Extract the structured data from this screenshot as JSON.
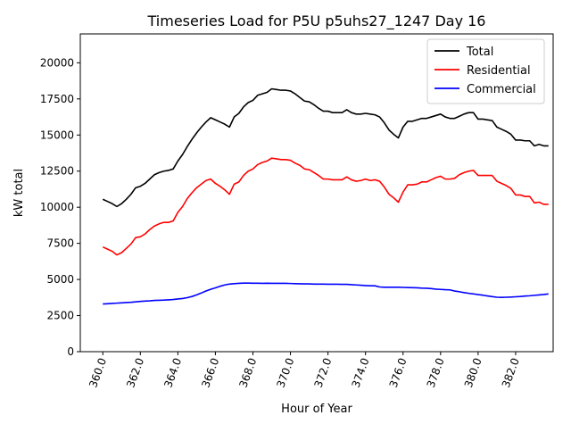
{
  "chart_data": {
    "type": "line",
    "title": "Timeseries Load for P5U p5uhs27_1247  Day 16",
    "xlabel": "Hour of Year",
    "ylabel": "kW total",
    "xlim": [
      358.8,
      384.0
    ],
    "ylim": [
      0,
      22000
    ],
    "xticks": [
      360,
      362,
      364,
      366,
      368,
      370,
      372,
      374,
      376,
      378,
      380,
      382
    ],
    "xtick_labels": [
      "360.0",
      "362.0",
      "364.0",
      "366.0",
      "368.0",
      "370.0",
      "372.0",
      "374.0",
      "376.0",
      "378.0",
      "380.0",
      "382.0"
    ],
    "yticks": [
      0,
      2500,
      5000,
      7500,
      10000,
      12500,
      15000,
      17500,
      20000
    ],
    "ytick_labels": [
      "0",
      "2500",
      "5000",
      "7500",
      "10000",
      "12500",
      "15000",
      "17500",
      "20000"
    ],
    "legend_position": "upper right",
    "x": [
      360.0,
      360.25,
      360.5,
      360.75,
      361.0,
      361.25,
      361.5,
      361.75,
      362.0,
      362.25,
      362.5,
      362.75,
      363.0,
      363.25,
      363.5,
      363.75,
      364.0,
      364.25,
      364.5,
      364.75,
      365.0,
      365.25,
      365.5,
      365.75,
      366.0,
      366.25,
      366.5,
      366.75,
      367.0,
      367.25,
      367.5,
      367.75,
      368.0,
      368.25,
      368.5,
      368.75,
      369.0,
      369.25,
      369.5,
      369.75,
      370.0,
      370.25,
      370.5,
      370.75,
      371.0,
      371.25,
      371.5,
      371.75,
      372.0,
      372.25,
      372.5,
      372.75,
      373.0,
      373.25,
      373.5,
      373.75,
      374.0,
      374.25,
      374.5,
      374.75,
      375.0,
      375.25,
      375.5,
      375.75,
      376.0,
      376.25,
      376.5,
      376.75,
      377.0,
      377.25,
      377.5,
      377.75,
      378.0,
      378.25,
      378.5,
      378.75,
      379.0,
      379.25,
      379.5,
      379.75,
      380.0,
      380.25,
      380.5,
      380.75,
      381.0,
      381.25,
      381.5,
      381.75,
      382.0,
      382.25,
      382.5,
      382.75,
      383.0,
      383.25,
      383.5,
      383.75
    ],
    "series": [
      {
        "name": "Total",
        "color": "#000000",
        "values": [
          10550,
          10400,
          10250,
          10050,
          10250,
          10550,
          10900,
          11350,
          11450,
          11650,
          11950,
          12250,
          12400,
          12500,
          12550,
          12650,
          13200,
          13650,
          14200,
          14700,
          15150,
          15550,
          15900,
          16200,
          16050,
          15900,
          15750,
          15550,
          16250,
          16500,
          16950,
          17250,
          17400,
          17750,
          17850,
          17950,
          18200,
          18150,
          18100,
          18100,
          18050,
          17850,
          17600,
          17350,
          17300,
          17100,
          16850,
          16650,
          16650,
          16550,
          16550,
          16550,
          16750,
          16550,
          16450,
          16450,
          16500,
          16450,
          16400,
          16250,
          15850,
          15350,
          15050,
          14800,
          15550,
          15950,
          15950,
          16050,
          16150,
          16150,
          16250,
          16350,
          16450,
          16250,
          16150,
          16150,
          16300,
          16450,
          16550,
          16550,
          16100,
          16100,
          16050,
          16000,
          15550,
          15400,
          15250,
          15050,
          14650,
          14650,
          14600,
          14600,
          14250,
          14350,
          14250,
          14250
        ]
      },
      {
        "name": "Residential",
        "color": "#ff0000",
        "values": [
          7250,
          7100,
          6950,
          6700,
          6850,
          7150,
          7450,
          7900,
          7950,
          8150,
          8450,
          8700,
          8850,
          8950,
          8950,
          9050,
          9650,
          10050,
          10600,
          11000,
          11350,
          11600,
          11850,
          11950,
          11650,
          11450,
          11200,
          10900,
          11600,
          11750,
          12200,
          12500,
          12650,
          12950,
          13100,
          13200,
          13400,
          13350,
          13300,
          13300,
          13250,
          13050,
          12900,
          12650,
          12600,
          12400,
          12200,
          11950,
          11950,
          11900,
          11900,
          11900,
          12100,
          11900,
          11800,
          11850,
          11950,
          11850,
          11900,
          11800,
          11400,
          10900,
          10650,
          10350,
          11050,
          11550,
          11550,
          11600,
          11750,
          11750,
          11900,
          12050,
          12150,
          11950,
          11950,
          12000,
          12250,
          12400,
          12500,
          12550,
          12200,
          12200,
          12200,
          12200,
          11800,
          11650,
          11500,
          11300,
          10850,
          10850,
          10750,
          10750,
          10300,
          10350,
          10200,
          10200
        ]
      },
      {
        "name": "Commercial",
        "color": "#0000ff",
        "values": [
          3300,
          3320,
          3340,
          3360,
          3380,
          3400,
          3420,
          3450,
          3480,
          3500,
          3520,
          3550,
          3560,
          3570,
          3590,
          3610,
          3650,
          3680,
          3740,
          3820,
          3930,
          4060,
          4200,
          4320,
          4420,
          4530,
          4620,
          4680,
          4710,
          4730,
          4750,
          4750,
          4740,
          4740,
          4730,
          4740,
          4730,
          4730,
          4730,
          4730,
          4720,
          4710,
          4700,
          4690,
          4690,
          4680,
          4680,
          4680,
          4670,
          4670,
          4670,
          4660,
          4660,
          4640,
          4620,
          4600,
          4580,
          4560,
          4560,
          4480,
          4460,
          4460,
          4460,
          4460,
          4450,
          4440,
          4430,
          4420,
          4400,
          4390,
          4370,
          4330,
          4310,
          4290,
          4280,
          4200,
          4150,
          4090,
          4040,
          4000,
          3950,
          3910,
          3860,
          3810,
          3770,
          3760,
          3770,
          3780,
          3800,
          3820,
          3850,
          3870,
          3900,
          3930,
          3960,
          4000
        ]
      }
    ]
  }
}
